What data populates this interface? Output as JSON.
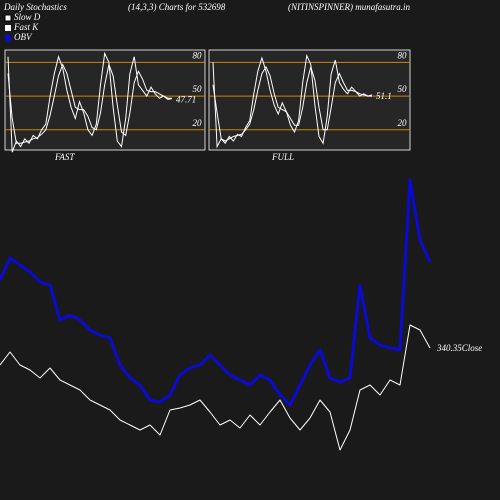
{
  "header": {
    "left": "Daily Stochastics",
    "center": "(14,3,3) Charts for 532698",
    "right": "(NITINSPINNER) munafasutra.in"
  },
  "chart_data": [
    {
      "type": "line",
      "label": "FAST",
      "ylim": [
        2,
        91
      ],
      "yticks": [
        20,
        50,
        80
      ],
      "grid_color": "#c8860b",
      "series": [
        {
          "name": "Slow D",
          "color": "#ffffff",
          "values": [
            70,
            30,
            8,
            8,
            9,
            10,
            12,
            13,
            16,
            20,
            33,
            50,
            68,
            78,
            70,
            55,
            40,
            38,
            38,
            32,
            22,
            20,
            35,
            60,
            78,
            68,
            42,
            18,
            15,
            35,
            62,
            72,
            65,
            55,
            54,
            54,
            52,
            50,
            48,
            48
          ]
        },
        {
          "name": "Fast K",
          "color": "#ffffff",
          "values": [
            85,
            0,
            10,
            5,
            12,
            8,
            15,
            12,
            20,
            25,
            50,
            70,
            85,
            75,
            55,
            40,
            30,
            45,
            35,
            20,
            15,
            25,
            60,
            88,
            80,
            40,
            10,
            5,
            30,
            70,
            85,
            60,
            55,
            50,
            58,
            52,
            48,
            50,
            47,
            47.71
          ]
        }
      ]
    },
    {
      "type": "line",
      "label": "FULL",
      "ylim": [
        2,
        91
      ],
      "yticks": [
        20,
        50,
        80
      ],
      "grid_color": "#c8860b",
      "series": [
        {
          "color": "#ffffff",
          "values": [
            60,
            35,
            12,
            10,
            12,
            14,
            15,
            16,
            20,
            25,
            38,
            55,
            70,
            76,
            68,
            52,
            40,
            38,
            36,
            30,
            24,
            24,
            40,
            62,
            76,
            64,
            40,
            20,
            20,
            40,
            62,
            70,
            62,
            55,
            55,
            54,
            52,
            51,
            50,
            50
          ]
        },
        {
          "color": "#ffffff",
          "values": [
            80,
            5,
            12,
            8,
            14,
            10,
            16,
            14,
            22,
            28,
            52,
            72,
            84,
            72,
            55,
            42,
            34,
            44,
            36,
            24,
            18,
            28,
            62,
            86,
            78,
            42,
            14,
            8,
            32,
            70,
            82,
            62,
            56,
            52,
            58,
            54,
            50,
            52,
            50,
            51.1
          ]
        }
      ]
    },
    {
      "type": "line",
      "x": [
        0,
        1,
        2,
        3,
        4,
        5,
        6,
        7,
        8,
        9,
        10,
        11,
        12,
        13,
        14,
        15,
        16,
        17,
        18,
        19,
        20,
        21,
        22,
        23,
        24,
        25,
        26,
        27,
        28,
        29,
        30,
        31,
        32,
        33,
        34,
        35,
        36,
        37,
        38,
        39,
        40,
        41,
        42,
        43
      ],
      "xlim": [
        0,
        43
      ],
      "ylim": [
        264.35,
        439.35
      ],
      "y2lim": [
        0,
        350
      ],
      "series": [
        {
          "name": "OBV",
          "color": "#0a0ad2",
          "axis": "y2",
          "values": [
            220,
            242,
            235,
            228,
            218,
            215,
            180,
            185,
            180,
            170,
            165,
            162,
            135,
            122,
            115,
            100,
            98,
            105,
            125,
            132,
            135,
            145,
            135,
            125,
            120,
            115,
            125,
            120,
            105,
            95,
            115,
            135,
            150,
            122,
            118,
            122,
            215,
            162,
            155,
            152,
            150,
            320,
            260,
            238
          ]
        },
        {
          "name": "Close",
          "color": "#ffffff",
          "values": [
            331.85,
            338.35,
            331.85,
            329.35,
            325.35,
            330.35,
            324.35,
            321.85,
            319.35,
            314.35,
            311.85,
            309.35,
            304.35,
            301.85,
            299.35,
            301.85,
            296.85,
            309.35,
            310.35,
            311.85,
            314.35,
            308.35,
            301.85,
            304.35,
            300.35,
            306.85,
            301.85,
            308.35,
            314.35,
            305.35,
            299.35,
            305.35,
            314.35,
            308.35,
            289.35,
            299.35,
            319.35,
            321.85,
            316.85,
            324.35,
            321.85,
            351.85,
            349.35,
            340.35
          ]
        }
      ]
    }
  ]
}
